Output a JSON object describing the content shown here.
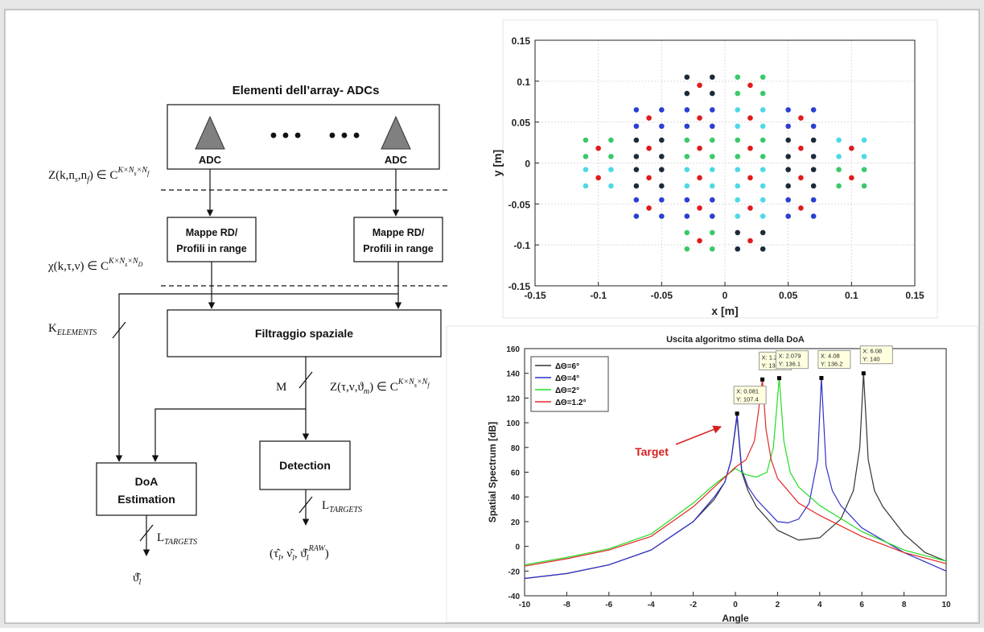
{
  "diagram": {
    "title": "Elementi dell’array- ADCs",
    "adc_labels": [
      "ADC",
      "ADC"
    ],
    "dots": [
      "• • •",
      "• • •"
    ],
    "boxes": {
      "mappe_left": [
        "Mappe RD/",
        "Profili in range"
      ],
      "mappe_right": [
        "Mappe RD/",
        "Profili in range"
      ],
      "filter": "Filtraggio spaziale",
      "detection": "Detection",
      "doa": [
        "DoA",
        "Estimation"
      ]
    },
    "formulas": [
      [
        {
          "text": "Z(k,n"
        },
        {
          "sub": "s"
        },
        {
          "text": ",n"
        },
        {
          "sub": "f"
        },
        {
          "text": ") ∈ C"
        },
        {
          "sup": "K×N"
        },
        {
          "supsub": "s"
        },
        {
          "sup": "×N"
        },
        {
          "supsub": "f"
        }
      ],
      [
        {
          "text": "χ(k,τ,ν) ∈ C"
        },
        {
          "sup": "K×N"
        },
        {
          "supsub": "s"
        },
        {
          "sup": "×N"
        },
        {
          "supsub": "D"
        }
      ],
      [
        {
          "text": "K"
        },
        {
          "sub": "ELEMENTS"
        }
      ],
      [
        {
          "text": "M"
        }
      ],
      [
        {
          "text": "Z(τ,ν,ϑ"
        },
        {
          "sub": "m"
        },
        {
          "text": ") ∈ C"
        },
        {
          "sup": "K×N"
        },
        {
          "supsub": "s"
        },
        {
          "sup": "×N"
        },
        {
          "supsub": "f"
        }
      ],
      [
        {
          "text": "L"
        },
        {
          "sub": "TARGETS"
        }
      ],
      [
        {
          "text": "L"
        },
        {
          "sub": "TARGETS"
        }
      ],
      [
        {
          "text": "ϑ̂"
        },
        {
          "sub": "l"
        }
      ],
      [
        {
          "text": "(τ̂"
        },
        {
          "sub": "l"
        },
        {
          "text": ", ν̂"
        },
        {
          "sub": "l"
        },
        {
          "text": ", ϑ̂"
        },
        {
          "sub": "l"
        },
        {
          "sup": "RAW"
        },
        {
          "text": ")"
        }
      ]
    ]
  },
  "chart_data": [
    {
      "type": "scatter",
      "xlabel": "x [m]",
      "ylabel": "y [m]",
      "xlim": [
        -0.15,
        0.15
      ],
      "ylim": [
        -0.15,
        0.15
      ],
      "xticks": [
        -0.15,
        -0.1,
        -0.05,
        0,
        0.05,
        0.1,
        0.15
      ],
      "yticks": [
        -0.15,
        -0.1,
        -0.05,
        0,
        0.05,
        0.1,
        0.15
      ],
      "grid": true,
      "series": [
        {
          "color": "#1c2b3a",
          "x": [
            -0.03,
            -0.01,
            -0.03,
            -0.01,
            -0.07,
            -0.05,
            -0.07,
            -0.05,
            0.05,
            0.07,
            0.05,
            0.07,
            -0.07,
            -0.05,
            -0.07,
            -0.05,
            0.05,
            0.07,
            0.05,
            0.07,
            0.01,
            0.03,
            0.01,
            0.03
          ],
          "values": [
            0.105,
            0.105,
            0.085,
            0.085,
            0.028,
            0.028,
            0.008,
            0.008,
            0.028,
            0.028,
            0.008,
            0.008,
            -0.008,
            -0.008,
            -0.028,
            -0.028,
            -0.008,
            -0.008,
            -0.028,
            -0.028,
            -0.085,
            -0.085,
            -0.105,
            -0.105
          ]
        },
        {
          "color": "#2b3fd2",
          "x": [
            -0.07,
            -0.05,
            -0.07,
            -0.05,
            -0.03,
            -0.01,
            -0.03,
            -0.01,
            0.05,
            0.07,
            0.05,
            0.07,
            -0.07,
            -0.05,
            -0.07,
            -0.05,
            -0.03,
            -0.01,
            -0.03,
            -0.01,
            0.05,
            0.07,
            0.05,
            0.07
          ],
          "values": [
            0.065,
            0.065,
            0.045,
            0.045,
            0.065,
            0.065,
            0.045,
            0.045,
            0.065,
            0.065,
            0.045,
            0.045,
            -0.045,
            -0.045,
            -0.065,
            -0.065,
            -0.045,
            -0.045,
            -0.065,
            -0.065,
            -0.045,
            -0.045,
            -0.065,
            -0.065
          ]
        },
        {
          "color": "#4fd8e6",
          "x": [
            0.01,
            0.03,
            0.01,
            0.03,
            0.09,
            0.11,
            0.09,
            0.11,
            -0.11,
            -0.09,
            -0.11,
            -0.09,
            -0.03,
            -0.01,
            -0.03,
            -0.01,
            0.01,
            0.03,
            0.01,
            0.03,
            0.01,
            0.03,
            0.01,
            0.03
          ],
          "values": [
            0.065,
            0.065,
            0.045,
            0.045,
            0.028,
            0.028,
            0.008,
            0.008,
            -0.008,
            -0.008,
            -0.028,
            -0.028,
            -0.008,
            -0.008,
            -0.028,
            -0.028,
            -0.008,
            -0.008,
            -0.028,
            -0.028,
            -0.045,
            -0.045,
            -0.065,
            -0.065
          ]
        },
        {
          "color": "#3cc86a",
          "x": [
            0.01,
            0.03,
            0.01,
            0.03,
            -0.11,
            -0.09,
            -0.11,
            -0.09,
            -0.03,
            -0.01,
            -0.03,
            -0.01,
            0.01,
            0.03,
            0.01,
            0.03,
            0.09,
            0.11,
            0.09,
            0.11,
            -0.03,
            -0.01,
            -0.03,
            -0.01
          ],
          "values": [
            0.105,
            0.105,
            0.085,
            0.085,
            0.028,
            0.028,
            0.008,
            0.008,
            0.028,
            0.028,
            0.008,
            0.008,
            0.028,
            0.028,
            0.008,
            0.008,
            -0.008,
            -0.008,
            -0.028,
            -0.028,
            -0.085,
            -0.085,
            -0.105,
            -0.105
          ]
        },
        {
          "color": "#e01b1b",
          "x": [
            -0.02,
            0.02,
            -0.06,
            -0.02,
            0.02,
            0.06,
            -0.1,
            -0.06,
            -0.02,
            0.02,
            0.06,
            0.1,
            -0.1,
            -0.06,
            -0.02,
            0.02,
            0.06,
            0.1,
            -0.06,
            -0.02,
            0.02,
            0.06,
            -0.02,
            0.02
          ],
          "values": [
            0.095,
            0.095,
            0.055,
            0.055,
            0.055,
            0.055,
            0.018,
            0.018,
            0.018,
            0.018,
            0.018,
            0.018,
            -0.018,
            -0.018,
            -0.018,
            -0.018,
            -0.018,
            -0.018,
            -0.055,
            -0.055,
            -0.055,
            -0.055,
            -0.095,
            -0.095
          ]
        }
      ]
    },
    {
      "type": "line",
      "title": "Uscita algoritmo stima della DoA",
      "xlabel": "Angle",
      "ylabel": "Spatial Spectrum [dB]",
      "annotation": "Target",
      "xlim": [
        -10,
        10
      ],
      "ylim": [
        -40,
        160
      ],
      "xticks": [
        -10,
        -8,
        -6,
        -4,
        -2,
        0,
        2,
        4,
        6,
        8,
        10
      ],
      "yticks": [
        -40,
        -20,
        0,
        20,
        40,
        60,
        80,
        100,
        120,
        140,
        160
      ],
      "grid": false,
      "legend": "upper left",
      "series": [
        {
          "name": "ΔΘ=6°",
          "color": "#333333",
          "x": [
            -10,
            -8,
            -6,
            -4,
            -2,
            -1,
            -0.5,
            -0.2,
            0.08,
            0.3,
            0.6,
            1,
            2,
            3,
            4,
            5,
            5.6,
            5.9,
            6.08,
            6.3,
            6.6,
            7,
            8,
            9,
            10
          ],
          "values": [
            -26,
            -22,
            -15,
            -3,
            20,
            38,
            52,
            70,
            105,
            60,
            45,
            32,
            13,
            5,
            7,
            22,
            45,
            80,
            140,
            70,
            45,
            32,
            10,
            -5,
            -12
          ]
        },
        {
          "name": "ΔΘ=4°",
          "color": "#3030c8",
          "x": [
            -10,
            -8,
            -6,
            -4,
            -2,
            -1,
            -0.5,
            -0.2,
            0.081,
            0.3,
            0.6,
            1,
            2,
            2.5,
            3,
            3.5,
            3.9,
            4.08,
            4.3,
            4.6,
            5,
            6,
            8,
            10
          ],
          "values": [
            -26,
            -22,
            -15,
            -3,
            20,
            40,
            52,
            70,
            107.4,
            62,
            48,
            38,
            20,
            19,
            22,
            35,
            70,
            136.2,
            65,
            45,
            33,
            15,
            -5,
            -20
          ]
        },
        {
          "name": "ΔΘ=2°",
          "color": "#22dd22",
          "x": [
            -10,
            -8,
            -6,
            -4,
            -2,
            -1,
            0,
            0.5,
            1,
            1.5,
            1.8,
            2.079,
            2.3,
            2.6,
            3,
            4,
            6,
            8,
            10
          ],
          "values": [
            -15,
            -9,
            -2,
            10,
            35,
            50,
            63,
            58,
            56,
            60,
            80,
            136.1,
            85,
            60,
            48,
            33,
            12,
            -3,
            -12
          ]
        },
        {
          "name": "ΔΘ=1.2°",
          "color": "#e02828",
          "x": [
            -10,
            -8,
            -6,
            -4,
            -2,
            -1,
            0,
            0.5,
            0.9,
            1.1,
            1.281,
            1.45,
            1.7,
            2,
            3,
            4,
            6,
            8,
            10
          ],
          "values": [
            -16,
            -10,
            -3,
            8,
            32,
            48,
            64,
            70,
            85,
            110,
            135,
            95,
            70,
            55,
            35,
            25,
            8,
            -5,
            -14
          ]
        }
      ],
      "datatips": [
        {
          "x": 0.081,
          "y": 107.4,
          "x_label": "X: 0.081",
          "y_label": "Y: 107.4"
        },
        {
          "x": 1.281,
          "y": 135,
          "x_label": "X: 1.281",
          "y_label": "Y: 135"
        },
        {
          "x": 2.079,
          "y": 136.1,
          "x_label": "X: 2.079",
          "y_label": "Y: 136.1"
        },
        {
          "x": 4.08,
          "y": 136.2,
          "x_label": "X: 4.08",
          "y_label": "Y: 136.2"
        },
        {
          "x": 6.08,
          "y": 140,
          "x_label": "X: 6.08",
          "y_label": "Y: 140"
        }
      ]
    }
  ]
}
